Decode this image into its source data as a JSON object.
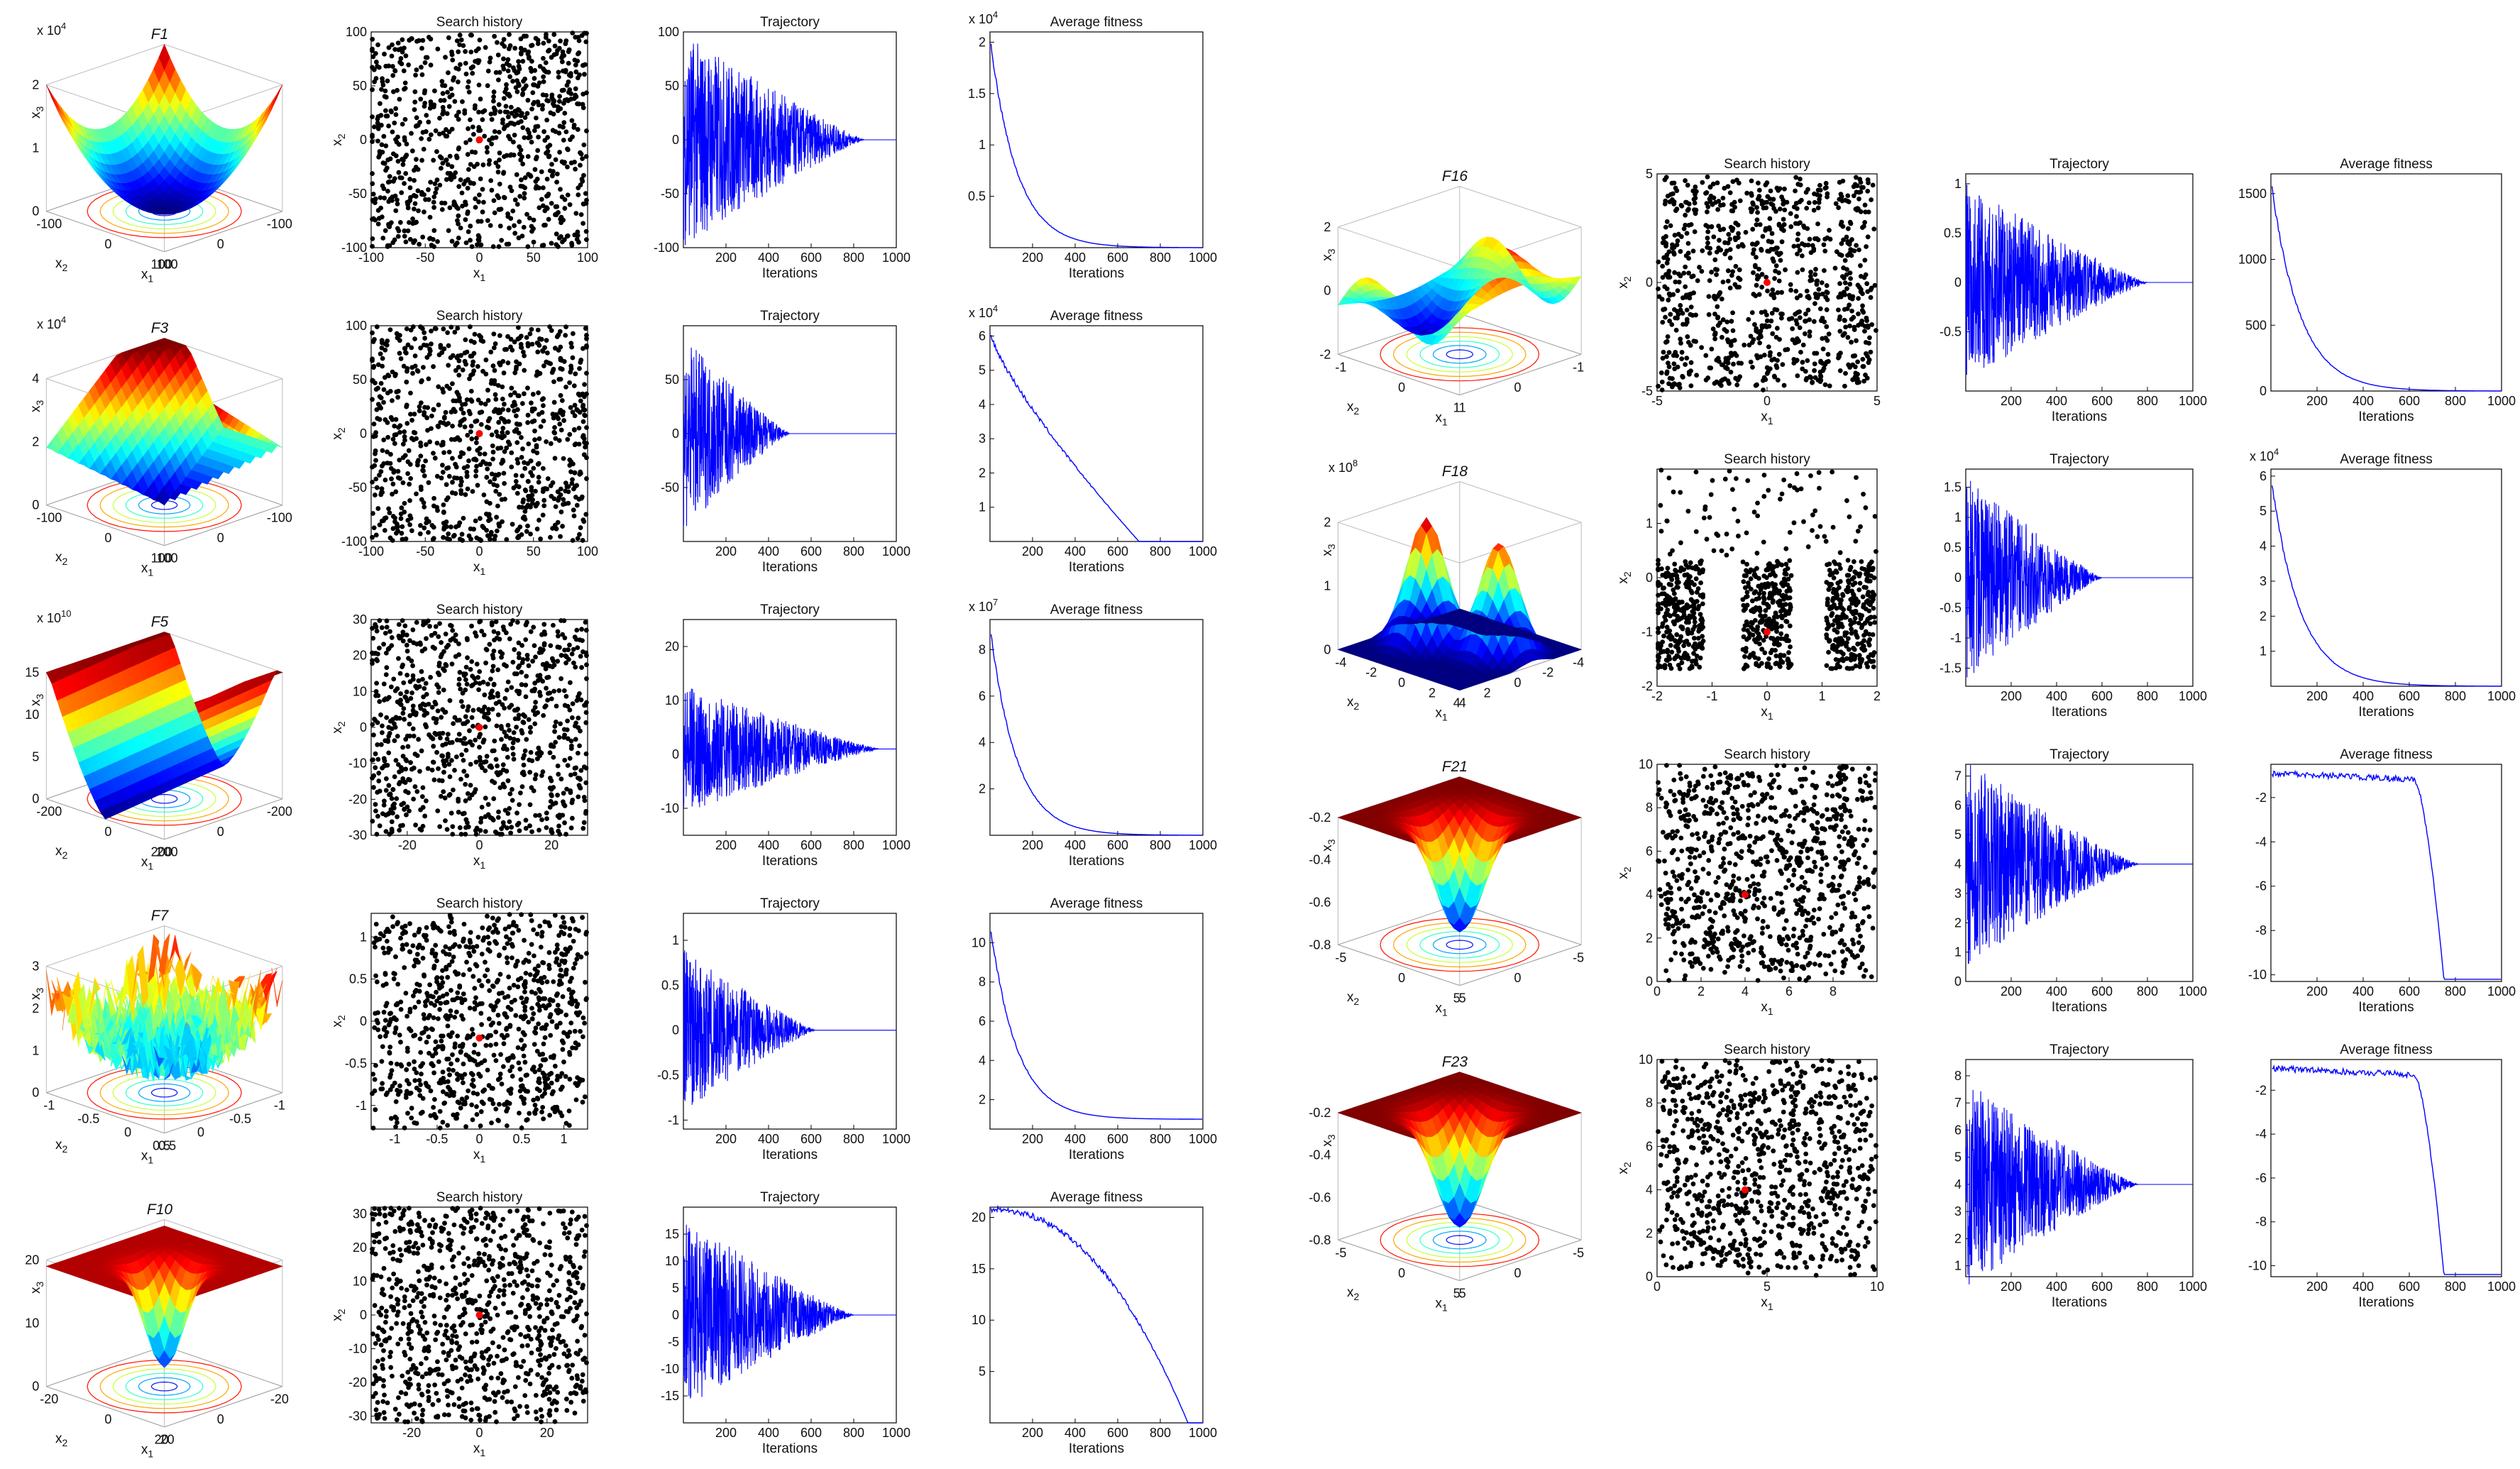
{
  "figure": {
    "columns": [
      "Search history",
      "Trajectory",
      "Average fitness"
    ],
    "x_iter_label": "Iterations"
  },
  "chart_data": [
    {
      "id": "F1",
      "surface": {
        "title": "F1",
        "scale": "x 10^4",
        "zticks": [
          0,
          1,
          2
        ],
        "xticks": [
          -100,
          0,
          100
        ],
        "yticks": [
          -100,
          0,
          100
        ],
        "xlabel": "x1",
        "ylabel": "x2",
        "zlabel": "x3",
        "colormap": "jet",
        "shape": "bowl"
      },
      "search": {
        "type": "scatter",
        "title": "Search history",
        "xlim": [
          -100,
          100
        ],
        "ylim": [
          -100,
          100
        ],
        "xticks": [
          -100,
          -50,
          0,
          50,
          100
        ],
        "yticks": [
          -100,
          -50,
          0,
          50,
          100
        ],
        "xlabel": "x1",
        "ylabel": "x2",
        "best": [
          0,
          0
        ],
        "pattern": "uniform"
      },
      "trajectory": {
        "type": "line",
        "title": "Trajectory",
        "xlabel": "Iterations",
        "xlim": [
          0,
          1000
        ],
        "xticks": [
          200,
          400,
          600,
          800,
          1000
        ],
        "ylim": [
          -100,
          100
        ],
        "yticks": [
          -100,
          -50,
          0,
          50,
          100
        ],
        "amplitude": 100,
        "converge": 850,
        "end": 0
      },
      "fitness": {
        "type": "line",
        "title": "Average fitness",
        "xlabel": "Iterations",
        "xlim": [
          0,
          1000
        ],
        "xticks": [
          200,
          400,
          600,
          800,
          1000
        ],
        "scale": "x 10^4",
        "ylim": [
          0,
          2.1
        ],
        "yticks": [
          0.5,
          1,
          1.5,
          2
        ],
        "start": 2.05,
        "end": 0,
        "shape": "exp"
      }
    },
    {
      "id": "F3",
      "surface": {
        "title": "F3",
        "scale": "x 10^4",
        "zticks": [
          0,
          2,
          4
        ],
        "xticks": [
          -100,
          0,
          100
        ],
        "yticks": [
          -100,
          0,
          100
        ],
        "xlabel": "x1",
        "ylabel": "x2",
        "zlabel": "x3",
        "colormap": "jet",
        "shape": "ridge"
      },
      "search": {
        "type": "scatter",
        "title": "Search history",
        "xlim": [
          -100,
          100
        ],
        "ylim": [
          -100,
          100
        ],
        "xticks": [
          -100,
          -50,
          0,
          50,
          100
        ],
        "yticks": [
          -100,
          -50,
          0,
          50,
          100
        ],
        "xlabel": "x1",
        "ylabel": "x2",
        "best": [
          0,
          0
        ],
        "pattern": "uniform"
      },
      "trajectory": {
        "type": "line",
        "title": "Trajectory",
        "xlabel": "Iterations",
        "xlim": [
          0,
          1000
        ],
        "xticks": [
          200,
          400,
          600,
          800,
          1000
        ],
        "ylim": [
          -100,
          100
        ],
        "yticks": [
          -50,
          0,
          50
        ],
        "amplitude": 90,
        "converge": 500,
        "end": 0
      },
      "fitness": {
        "type": "line",
        "title": "Average fitness",
        "xlabel": "Iterations",
        "xlim": [
          0,
          1000
        ],
        "xticks": [
          200,
          400,
          600,
          800,
          1000
        ],
        "scale": "x 10^4",
        "ylim": [
          0,
          6.3
        ],
        "yticks": [
          1,
          2,
          3,
          4,
          5,
          6
        ],
        "start": 6.1,
        "end": 0,
        "shape": "concave"
      }
    },
    {
      "id": "F5",
      "surface": {
        "title": "F5",
        "scale": "x 10^10",
        "zticks": [
          0,
          5,
          10,
          15
        ],
        "xticks": [
          -200,
          0,
          200
        ],
        "yticks": [
          -200,
          0,
          200
        ],
        "xlabel": "x1",
        "ylabel": "x2",
        "zlabel": "x3",
        "colormap": "jet",
        "shape": "valley"
      },
      "search": {
        "type": "scatter",
        "title": "Search history",
        "xlim": [
          -30,
          30
        ],
        "ylim": [
          -30,
          30
        ],
        "xticks": [
          -20,
          0,
          20
        ],
        "yticks": [
          -30,
          -20,
          -10,
          0,
          10,
          20,
          30
        ],
        "xlabel": "x1",
        "ylabel": "x2",
        "best": [
          0,
          0
        ],
        "pattern": "uniform"
      },
      "trajectory": {
        "type": "line",
        "title": "Trajectory",
        "xlabel": "Iterations",
        "xlim": [
          0,
          1000
        ],
        "xticks": [
          200,
          400,
          600,
          800,
          1000
        ],
        "ylim": [
          -15,
          25
        ],
        "yticks": [
          -10,
          0,
          10,
          20
        ],
        "amplitude": 12,
        "converge": 920,
        "end": 1
      },
      "fitness": {
        "type": "line",
        "title": "Average fitness",
        "xlabel": "Iterations",
        "xlim": [
          0,
          1000
        ],
        "xticks": [
          200,
          400,
          600,
          800,
          1000
        ],
        "scale": "x 10^7",
        "ylim": [
          0,
          9.3
        ],
        "yticks": [
          2,
          4,
          6,
          8
        ],
        "start": 9,
        "end": 0,
        "shape": "exp"
      }
    },
    {
      "id": "F7",
      "surface": {
        "title": "F7",
        "scale": "",
        "zticks": [
          0,
          1,
          2,
          3
        ],
        "xticks": [
          -1,
          -0.5,
          0,
          0.5
        ],
        "yticks": [
          -1,
          -0.5,
          0,
          0.5
        ],
        "xlabel": "x1",
        "ylabel": "x2",
        "zlabel": "x3",
        "colormap": "jet",
        "shape": "noise"
      },
      "search": {
        "type": "scatter",
        "title": "Search history",
        "xlim": [
          -1.28,
          1.28
        ],
        "ylim": [
          -1.28,
          1.28
        ],
        "xticks": [
          -1,
          -0.5,
          0,
          0.5,
          1
        ],
        "yticks": [
          -1,
          -0.5,
          0,
          0.5,
          1
        ],
        "xlabel": "x1",
        "ylabel": "x2",
        "best": [
          0,
          -0.2
        ],
        "pattern": "clustered"
      },
      "trajectory": {
        "type": "line",
        "title": "Trajectory",
        "xlabel": "Iterations",
        "xlim": [
          0,
          1000
        ],
        "xticks": [
          200,
          400,
          600,
          800,
          1000
        ],
        "ylim": [
          -1.1,
          1.3
        ],
        "yticks": [
          -1,
          -0.5,
          0,
          0.5,
          1
        ],
        "amplitude": 0.9,
        "converge": 620,
        "end": 0
      },
      "fitness": {
        "type": "line",
        "title": "Average fitness",
        "xlabel": "Iterations",
        "xlim": [
          0,
          1000
        ],
        "xticks": [
          200,
          400,
          600,
          800,
          1000
        ],
        "scale": "",
        "ylim": [
          0.5,
          11.5
        ],
        "yticks": [
          2,
          4,
          6,
          8,
          10
        ],
        "start": 11,
        "end": 1,
        "shape": "exp"
      }
    },
    {
      "id": "F10",
      "surface": {
        "title": "F10",
        "scale": "",
        "zticks": [
          0,
          10,
          20
        ],
        "xticks": [
          -20,
          0,
          20
        ],
        "yticks": [
          -20,
          0,
          20
        ],
        "xlabel": "x1",
        "ylabel": "x2",
        "zlabel": "x3",
        "colormap": "jet",
        "shape": "funnel"
      },
      "search": {
        "type": "scatter",
        "title": "Search history",
        "xlim": [
          -32,
          32
        ],
        "ylim": [
          -32,
          32
        ],
        "xticks": [
          -20,
          0,
          20
        ],
        "yticks": [
          -30,
          -20,
          -10,
          0,
          10,
          20,
          30
        ],
        "xlabel": "x1",
        "ylabel": "x2",
        "best": [
          0,
          0
        ],
        "pattern": "uniform"
      },
      "trajectory": {
        "type": "line",
        "title": "Trajectory",
        "xlabel": "Iterations",
        "xlim": [
          0,
          1000
        ],
        "xticks": [
          200,
          400,
          600,
          800,
          1000
        ],
        "ylim": [
          -20,
          20
        ],
        "yticks": [
          -15,
          -10,
          -5,
          0,
          5,
          10,
          15
        ],
        "amplitude": 18,
        "converge": 800,
        "end": 0
      },
      "fitness": {
        "type": "line",
        "title": "Average fitness",
        "xlabel": "Iterations",
        "xlim": [
          0,
          1000
        ],
        "xticks": [
          200,
          400,
          600,
          800,
          1000
        ],
        "scale": "",
        "ylim": [
          0,
          21
        ],
        "yticks": [
          5,
          10,
          15,
          20
        ],
        "start": 20.8,
        "end": 0,
        "shape": "late"
      }
    },
    {
      "id": "F16",
      "surface": {
        "title": "F16",
        "scale": "",
        "zticks": [
          -2,
          0,
          2
        ],
        "xticks": [
          -1,
          0,
          1
        ],
        "yticks": [
          -1,
          0,
          1
        ],
        "xlabel": "x1",
        "ylabel": "x2",
        "zlabel": "x3",
        "colormap": "jet",
        "shape": "hills"
      },
      "search": {
        "type": "scatter",
        "title": "Search history",
        "xlim": [
          -5,
          5
        ],
        "ylim": [
          -5,
          5
        ],
        "xticks": [
          -5,
          0,
          5
        ],
        "yticks": [
          -5,
          0,
          5
        ],
        "xlabel": "x1",
        "ylabel": "x2",
        "best": [
          0,
          0
        ],
        "pattern": "grid"
      },
      "trajectory": {
        "type": "line",
        "title": "Trajectory",
        "xlabel": "Iterations",
        "xlim": [
          0,
          1000
        ],
        "xticks": [
          200,
          400,
          600,
          800,
          1000
        ],
        "ylim": [
          -1.1,
          1.1
        ],
        "yticks": [
          -0.5,
          0,
          0.5,
          1
        ],
        "amplitude": 1,
        "converge": 800,
        "end": 0
      },
      "fitness": {
        "type": "line",
        "title": "Average fitness",
        "xlabel": "Iterations",
        "xlim": [
          0,
          1000
        ],
        "xticks": [
          200,
          400,
          600,
          800,
          1000
        ],
        "scale": "",
        "ylim": [
          0,
          1650
        ],
        "yticks": [
          0,
          500,
          1000,
          1500
        ],
        "start": 1600,
        "end": 0,
        "shape": "exp"
      }
    },
    {
      "id": "F18",
      "surface": {
        "title": "F18",
        "scale": "x 10^8",
        "zticks": [
          0,
          1,
          2
        ],
        "xticks": [
          -4,
          -2,
          0,
          2,
          4
        ],
        "yticks": [
          -4,
          -2,
          0,
          2,
          4
        ],
        "xlabel": "x1",
        "ylabel": "x2",
        "zlabel": "x3",
        "colormap": "jet",
        "shape": "peaks"
      },
      "search": {
        "type": "scatter",
        "title": "Search history",
        "xlim": [
          -2,
          2
        ],
        "ylim": [
          -2,
          2
        ],
        "xticks": [
          -2,
          -1,
          0,
          1,
          2
        ],
        "yticks": [
          -2,
          -1,
          0,
          1
        ],
        "xlabel": "x1",
        "ylabel": "x2",
        "best": [
          0,
          -1
        ],
        "pattern": "bands"
      },
      "trajectory": {
        "type": "line",
        "title": "Trajectory",
        "xlabel": "Iterations",
        "xlim": [
          0,
          1000
        ],
        "xticks": [
          200,
          400,
          600,
          800,
          1000
        ],
        "ylim": [
          -1.8,
          1.8
        ],
        "yticks": [
          -1.5,
          -1,
          -0.5,
          0,
          0.5,
          1,
          1.5
        ],
        "amplitude": 1.7,
        "converge": 600,
        "end": 0
      },
      "fitness": {
        "type": "line",
        "title": "Average fitness",
        "xlabel": "Iterations",
        "xlim": [
          0,
          1000
        ],
        "xticks": [
          200,
          400,
          600,
          800,
          1000
        ],
        "scale": "x 10^4",
        "ylim": [
          0,
          6.2
        ],
        "yticks": [
          1,
          2,
          3,
          4,
          5,
          6
        ],
        "start": 6,
        "end": 0,
        "shape": "exp"
      }
    },
    {
      "id": "F21",
      "surface": {
        "title": "F21",
        "scale": "",
        "zticks": [
          -0.8,
          -0.6,
          -0.4,
          -0.2
        ],
        "xticks": [
          -5,
          0,
          5
        ],
        "yticks": [
          -5,
          0,
          5
        ],
        "xlabel": "x1",
        "ylabel": "x2",
        "zlabel": "x3",
        "colormap": "jet",
        "shape": "well"
      },
      "search": {
        "type": "scatter",
        "title": "Search history",
        "xlim": [
          0,
          10
        ],
        "ylim": [
          0,
          10
        ],
        "xticks": [
          0,
          2,
          4,
          6,
          8
        ],
        "yticks": [
          0,
          2,
          4,
          6,
          8,
          10
        ],
        "xlabel": "x1",
        "ylabel": "x2",
        "best": [
          4,
          4
        ],
        "pattern": "clustered"
      },
      "trajectory": {
        "type": "line",
        "title": "Trajectory",
        "xlabel": "Iterations",
        "xlim": [
          0,
          1000
        ],
        "xticks": [
          200,
          400,
          600,
          800,
          1000
        ],
        "ylim": [
          0,
          7.4
        ],
        "yticks": [
          0,
          1,
          2,
          3,
          4,
          5,
          6,
          7
        ],
        "amplitude": 3.5,
        "converge": 760,
        "end": 4
      },
      "fitness": {
        "type": "line",
        "title": "Average fitness",
        "xlabel": "Iterations",
        "xlim": [
          0,
          1000
        ],
        "xticks": [
          200,
          400,
          600,
          800,
          1000
        ],
        "scale": "",
        "ylim": [
          -10.3,
          -0.5
        ],
        "yticks": [
          -10,
          -8,
          -6,
          -4,
          -2
        ],
        "start": -0.9,
        "end": -10.2,
        "shape": "cliff"
      }
    },
    {
      "id": "F23",
      "surface": {
        "title": "F23",
        "scale": "",
        "zticks": [
          -0.8,
          -0.6,
          -0.4,
          -0.2
        ],
        "xticks": [
          -5,
          0,
          5
        ],
        "yticks": [
          -5,
          0,
          5
        ],
        "xlabel": "x1",
        "ylabel": "x2",
        "zlabel": "x3",
        "colormap": "jet",
        "shape": "well"
      },
      "search": {
        "type": "scatter",
        "title": "Search history",
        "xlim": [
          0,
          10
        ],
        "ylim": [
          0,
          10
        ],
        "xticks": [
          0,
          5,
          10
        ],
        "yticks": [
          0,
          2,
          4,
          6,
          8,
          10
        ],
        "xlabel": "x1",
        "ylabel": "x2",
        "best": [
          4,
          4
        ],
        "pattern": "clustered"
      },
      "trajectory": {
        "type": "line",
        "title": "Trajectory",
        "xlabel": "Iterations",
        "xlim": [
          0,
          1000
        ],
        "xticks": [
          200,
          400,
          600,
          800,
          1000
        ],
        "ylim": [
          0.6,
          8.6
        ],
        "yticks": [
          1,
          2,
          3,
          4,
          5,
          6,
          7,
          8
        ],
        "amplitude": 3.8,
        "converge": 760,
        "end": 4
      },
      "fitness": {
        "type": "line",
        "title": "Average fitness",
        "xlabel": "Iterations",
        "xlim": [
          0,
          1000
        ],
        "xticks": [
          200,
          400,
          600,
          800,
          1000
        ],
        "scale": "",
        "ylim": [
          -10.5,
          -0.6
        ],
        "yticks": [
          -10,
          -8,
          -6,
          -4,
          -2
        ],
        "start": -1,
        "end": -10.4,
        "shape": "cliff"
      }
    }
  ]
}
